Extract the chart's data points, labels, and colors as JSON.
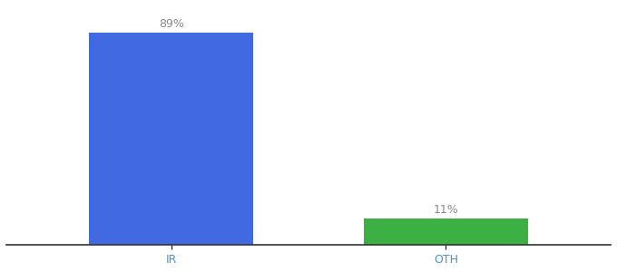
{
  "categories": [
    "IR",
    "OTH"
  ],
  "values": [
    89,
    11
  ],
  "bar_colors": [
    "#4169e1",
    "#3cb043"
  ],
  "labels": [
    "89%",
    "11%"
  ],
  "ylim": [
    0,
    100
  ],
  "background_color": "#ffffff",
  "bar_width": 0.6,
  "label_fontsize": 9,
  "tick_fontsize": 9,
  "label_color": "#888888"
}
